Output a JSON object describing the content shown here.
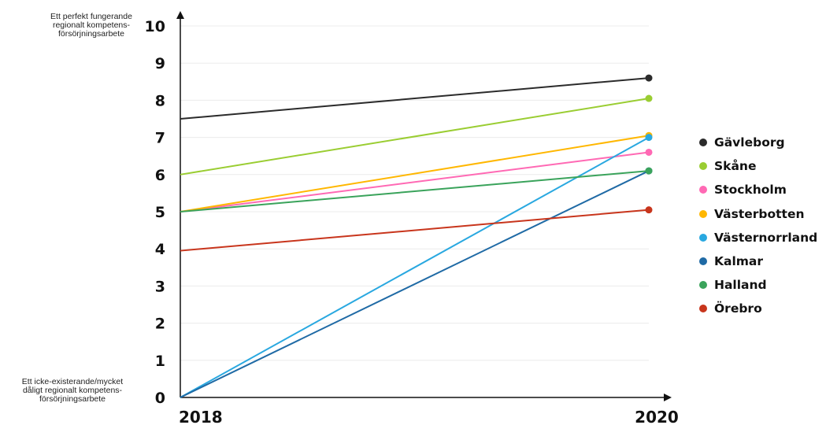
{
  "chart_data": {
    "type": "line",
    "x": [
      "2018",
      "2020"
    ],
    "ylim": [
      0,
      10
    ],
    "yticks": [
      "0",
      "1",
      "2",
      "3",
      "4",
      "5",
      "6",
      "7",
      "8",
      "9",
      "10"
    ],
    "y_top_note": [
      "Ett perfekt fungerande",
      "regionalt kompetens-",
      "försörjningsarbete"
    ],
    "y_bottom_note": [
      "Ett icke-existerande/mycket",
      "dåligt regionalt kompetens-",
      "försörjningsarbete"
    ],
    "grid": true,
    "legend_position": "right",
    "series": [
      {
        "name": "Gävleborg",
        "color": "#2b2b2b",
        "values": [
          7.5,
          8.6
        ]
      },
      {
        "name": "Skåne",
        "color": "#9acd32",
        "values": [
          6.0,
          8.05
        ]
      },
      {
        "name": "Stockholm",
        "color": "#ff69b4",
        "values": [
          5.0,
          6.6
        ]
      },
      {
        "name": "Västerbotten",
        "color": "#ffb700",
        "values": [
          5.0,
          7.05
        ]
      },
      {
        "name": "Västernorrland",
        "color": "#29a8e0",
        "values": [
          0,
          7.0
        ]
      },
      {
        "name": "Kalmar",
        "color": "#1f6aa5",
        "values": [
          0,
          6.1
        ]
      },
      {
        "name": "Halland",
        "color": "#3aa35b",
        "values": [
          5.0,
          6.1
        ]
      },
      {
        "name": "Örebro",
        "color": "#c8351c",
        "values": [
          3.95,
          5.05
        ]
      }
    ]
  }
}
